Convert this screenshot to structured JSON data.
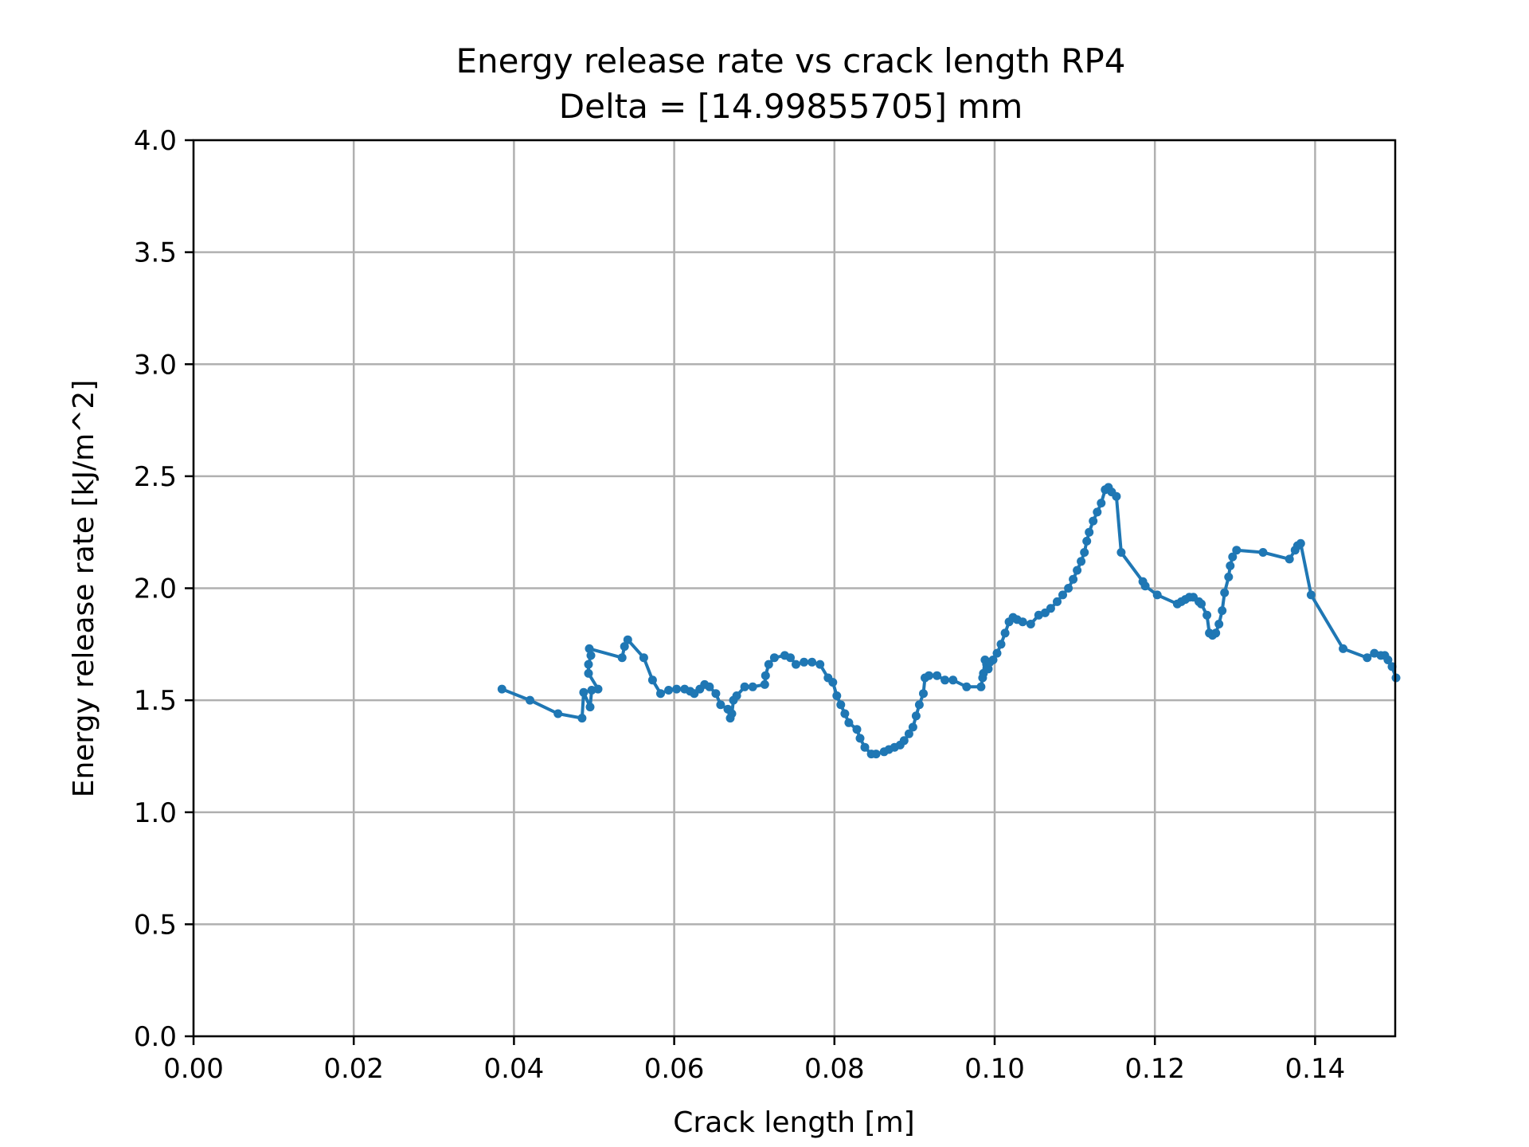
{
  "chart_data": {
    "type": "line",
    "title": "Energy release rate vs crack length RP4",
    "subtitle": "Delta = [14.99855705] mm",
    "xlabel": "Crack length [m]",
    "ylabel": "Energy release rate [kJ/m^2]",
    "xlim": [
      0.0,
      0.15
    ],
    "ylim": [
      0.0,
      4.0
    ],
    "xticks": [
      "0.00",
      "0.02",
      "0.04",
      "0.06",
      "0.08",
      "0.10",
      "0.12",
      "0.14"
    ],
    "yticks": [
      "0.0",
      "0.5",
      "1.0",
      "1.5",
      "2.0",
      "2.5",
      "3.0",
      "3.5",
      "4.0"
    ],
    "grid": true,
    "color": "#1f77b4",
    "marker": "circle",
    "series": [
      {
        "x": [
          0.0385,
          0.042,
          0.0455,
          0.0485,
          0.0487,
          0.0495,
          0.0497,
          0.0505,
          0.0493,
          0.0493,
          0.0496,
          0.0494,
          0.0535,
          0.0538,
          0.0542,
          0.0562,
          0.0573,
          0.0583,
          0.0593,
          0.0603,
          0.0613,
          0.062,
          0.0625,
          0.0632,
          0.0638,
          0.0644,
          0.0652,
          0.0658,
          0.0667,
          0.067,
          0.0672,
          0.0674,
          0.0678,
          0.0688,
          0.0698,
          0.0713,
          0.0714,
          0.0718,
          0.0725,
          0.0738,
          0.0745,
          0.0752,
          0.0762,
          0.0772,
          0.0782,
          0.0792,
          0.0798,
          0.0803,
          0.0808,
          0.0813,
          0.0818,
          0.0828,
          0.0832,
          0.0838,
          0.0846,
          0.0852,
          0.0862,
          0.0868,
          0.0875,
          0.0882,
          0.0887,
          0.0893,
          0.0898,
          0.0902,
          0.0906,
          0.0911,
          0.0913,
          0.0918,
          0.0928,
          0.0938,
          0.0948,
          0.0965,
          0.0983,
          0.0985,
          0.0986,
          0.0988,
          0.099,
          0.0992,
          0.0994,
          0.0998,
          0.1003,
          0.1008,
          0.1013,
          0.1018,
          0.1023,
          0.1028,
          0.1035,
          0.1045,
          0.1055,
          0.1063,
          0.107,
          0.1078,
          0.1085,
          0.1092,
          0.1098,
          0.1103,
          0.1108,
          0.1112,
          0.1115,
          0.1118,
          0.1123,
          0.1128,
          0.1133,
          0.1138,
          0.1142,
          0.1146,
          0.1152,
          0.1158,
          0.1185,
          0.1188,
          0.1203,
          0.1228,
          0.1233,
          0.1238,
          0.1243,
          0.1248,
          0.1255,
          0.1258,
          0.1265,
          0.1268,
          0.1272,
          0.1276,
          0.128,
          0.1284,
          0.1287,
          0.1292,
          0.1294,
          0.1297,
          0.1302,
          0.1335,
          0.1368,
          0.1375,
          0.1378,
          0.1382,
          0.1395,
          0.1435,
          0.1465,
          0.1474,
          0.1482,
          0.1487,
          0.1491,
          0.1496,
          0.1501
        ],
        "y": [
          1.55,
          1.5,
          1.44,
          1.42,
          1.535,
          1.47,
          1.545,
          1.55,
          1.62,
          1.66,
          1.7,
          1.73,
          1.69,
          1.74,
          1.77,
          1.69,
          1.59,
          1.53,
          1.545,
          1.55,
          1.55,
          1.54,
          1.53,
          1.55,
          1.57,
          1.56,
          1.53,
          1.48,
          1.46,
          1.42,
          1.44,
          1.5,
          1.52,
          1.56,
          1.56,
          1.57,
          1.61,
          1.66,
          1.69,
          1.7,
          1.69,
          1.66,
          1.67,
          1.67,
          1.66,
          1.6,
          1.58,
          1.52,
          1.48,
          1.44,
          1.4,
          1.37,
          1.33,
          1.29,
          1.26,
          1.26,
          1.27,
          1.28,
          1.29,
          1.3,
          1.32,
          1.35,
          1.38,
          1.43,
          1.48,
          1.53,
          1.6,
          1.61,
          1.61,
          1.59,
          1.59,
          1.56,
          1.56,
          1.6,
          1.62,
          1.68,
          1.66,
          1.64,
          1.67,
          1.68,
          1.71,
          1.75,
          1.8,
          1.85,
          1.87,
          1.86,
          1.85,
          1.84,
          1.88,
          1.89,
          1.91,
          1.94,
          1.97,
          2.0,
          2.04,
          2.08,
          2.12,
          2.16,
          2.21,
          2.25,
          2.3,
          2.34,
          2.38,
          2.44,
          2.45,
          2.43,
          2.41,
          2.16,
          2.03,
          2.01,
          1.97,
          1.93,
          1.94,
          1.95,
          1.96,
          1.96,
          1.94,
          1.93,
          1.88,
          1.8,
          1.79,
          1.8,
          1.84,
          1.9,
          1.98,
          2.05,
          2.1,
          2.14,
          2.17,
          2.16,
          2.13,
          2.17,
          2.19,
          2.2,
          1.97,
          1.73,
          1.69,
          1.71,
          1.7,
          1.7,
          1.68,
          1.65,
          1.6
        ]
      }
    ]
  }
}
